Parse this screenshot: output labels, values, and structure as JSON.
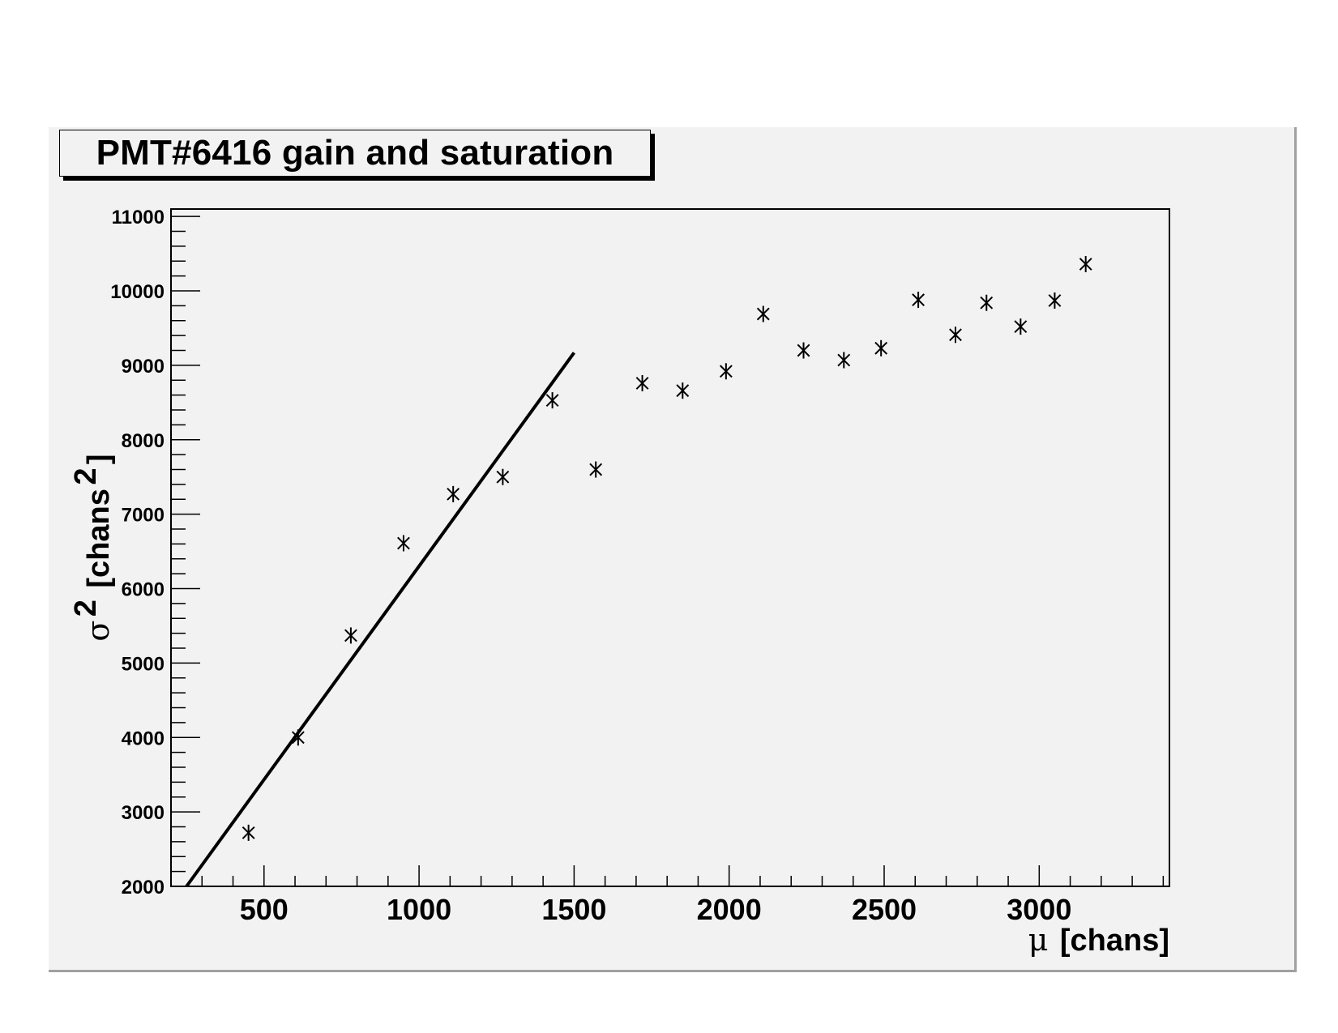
{
  "title": "PMT#6416 gain and saturation",
  "chart_data": {
    "type": "scatter",
    "title": "PMT#6416 gain and saturation",
    "xlabel": {
      "symbol": "μ",
      "text": "[chans]"
    },
    "ylabel": {
      "symbol": "σ",
      "sup": "2",
      "text": "[chans",
      "unit_sup": "2",
      "close": "]"
    },
    "xlim": [
      200,
      3420
    ],
    "ylim": [
      2000,
      11100
    ],
    "x_ticks": [
      500,
      1000,
      1500,
      2000,
      2500,
      3000
    ],
    "y_ticks": [
      2000,
      3000,
      4000,
      5000,
      6000,
      7000,
      8000,
      9000,
      10000,
      11000
    ],
    "marker": "asterisk",
    "series": [
      {
        "points": [
          [
            450,
            2720
          ],
          [
            610,
            4000
          ],
          [
            780,
            5370
          ],
          [
            950,
            6610
          ],
          [
            1110,
            7270
          ],
          [
            1270,
            7500
          ],
          [
            1430,
            8530
          ],
          [
            1570,
            7600
          ],
          [
            1720,
            8760
          ],
          [
            1850,
            8660
          ],
          [
            1990,
            8920
          ],
          [
            2110,
            9690
          ],
          [
            2240,
            9200
          ],
          [
            2370,
            9070
          ],
          [
            2490,
            9230
          ],
          [
            2610,
            9880
          ],
          [
            2730,
            9410
          ],
          [
            2830,
            9840
          ],
          [
            2940,
            9520
          ],
          [
            3050,
            9870
          ],
          [
            3150,
            10360
          ]
        ]
      }
    ],
    "fit_line": {
      "x": [
        250,
        1500
      ],
      "y": [
        2000,
        9170
      ]
    }
  },
  "colors": {
    "frame_bg": "#f2f2f2",
    "ink": "#000000",
    "frame_shadow": "#a0a0a0"
  }
}
